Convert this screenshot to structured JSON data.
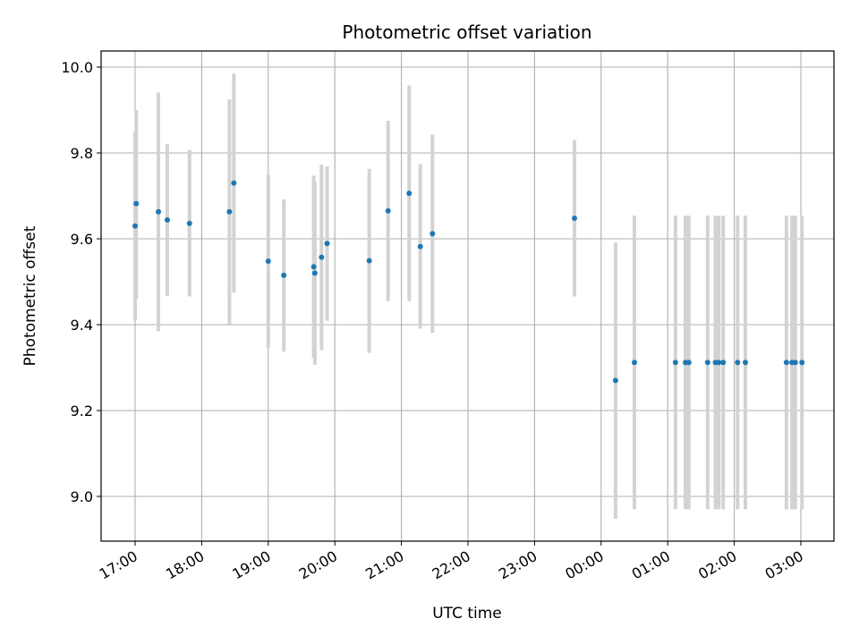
{
  "chart_data": {
    "type": "scatter",
    "title": "Photometric offset variation",
    "xlabel": "UTC time",
    "ylabel": "Photometric offset",
    "x_axis": {
      "type": "time",
      "lim": [
        "16:30",
        "03:30+1"
      ],
      "ticks": [
        "17:00",
        "18:00",
        "19:00",
        "20:00",
        "21:00",
        "22:00",
        "23:00",
        "00:00",
        "01:00",
        "02:00",
        "03:00"
      ]
    },
    "y_axis": {
      "lim": [
        8.9,
        10.04
      ],
      "ticks": [
        "9.0",
        "9.2",
        "9.4",
        "9.6",
        "9.8",
        "10.0"
      ]
    },
    "grid": true,
    "colors": {
      "point": "#1f77b4",
      "errorbar": "#d3d3d3",
      "grid": "#b0b0b0"
    },
    "points": [
      {
        "t": "17:00",
        "y": 9.63,
        "lo": 9.41,
        "hi": 9.85
      },
      {
        "t": "17:01",
        "y": 9.682,
        "lo": 9.46,
        "hi": 9.9
      },
      {
        "t": "17:21",
        "y": 9.663,
        "lo": 9.385,
        "hi": 9.941
      },
      {
        "t": "17:29",
        "y": 9.644,
        "lo": 9.467,
        "hi": 9.821
      },
      {
        "t": "17:49",
        "y": 9.636,
        "lo": 9.466,
        "hi": 9.807
      },
      {
        "t": "18:25",
        "y": 9.663,
        "lo": 9.401,
        "hi": 9.925
      },
      {
        "t": "18:29",
        "y": 9.73,
        "lo": 9.475,
        "hi": 9.985
      },
      {
        "t": "19:00",
        "y": 9.548,
        "lo": 9.347,
        "hi": 9.749
      },
      {
        "t": "19:14",
        "y": 9.515,
        "lo": 9.337,
        "hi": 9.692
      },
      {
        "t": "19:41",
        "y": 9.535,
        "lo": 9.323,
        "hi": 9.747
      },
      {
        "t": "19:42",
        "y": 9.52,
        "lo": 9.307,
        "hi": 9.732
      },
      {
        "t": "19:48",
        "y": 9.557,
        "lo": 9.341,
        "hi": 9.773
      },
      {
        "t": "19:53",
        "y": 9.589,
        "lo": 9.409,
        "hi": 9.769
      },
      {
        "t": "20:31",
        "y": 9.549,
        "lo": 9.334,
        "hi": 9.763
      },
      {
        "t": "20:48",
        "y": 9.665,
        "lo": 9.455,
        "hi": 9.875
      },
      {
        "t": "21:07",
        "y": 9.706,
        "lo": 9.455,
        "hi": 9.957
      },
      {
        "t": "21:17",
        "y": 9.582,
        "lo": 9.391,
        "hi": 9.774
      },
      {
        "t": "21:28",
        "y": 9.612,
        "lo": 9.381,
        "hi": 9.843
      },
      {
        "t": "23:36",
        "y": 9.648,
        "lo": 9.466,
        "hi": 9.83
      },
      {
        "t": "00:13",
        "y": 9.27,
        "lo": 8.948,
        "hi": 9.592
      },
      {
        "t": "00:30",
        "y": 9.312,
        "lo": 8.97,
        "hi": 9.654
      },
      {
        "t": "01:07",
        "y": 9.312,
        "lo": 8.97,
        "hi": 9.654
      },
      {
        "t": "01:16",
        "y": 9.312,
        "lo": 8.97,
        "hi": 9.654
      },
      {
        "t": "01:19",
        "y": 9.312,
        "lo": 8.97,
        "hi": 9.654
      },
      {
        "t": "01:36",
        "y": 9.312,
        "lo": 8.97,
        "hi": 9.654
      },
      {
        "t": "01:43",
        "y": 9.312,
        "lo": 8.97,
        "hi": 9.654
      },
      {
        "t": "01:46",
        "y": 9.312,
        "lo": 8.97,
        "hi": 9.654
      },
      {
        "t": "01:50",
        "y": 9.312,
        "lo": 8.97,
        "hi": 9.654
      },
      {
        "t": "02:03",
        "y": 9.312,
        "lo": 8.97,
        "hi": 9.654
      },
      {
        "t": "02:10",
        "y": 9.312,
        "lo": 8.97,
        "hi": 9.654
      },
      {
        "t": "02:47",
        "y": 9.312,
        "lo": 8.97,
        "hi": 9.654
      },
      {
        "t": "02:52",
        "y": 9.312,
        "lo": 8.97,
        "hi": 9.654
      },
      {
        "t": "02:55",
        "y": 9.312,
        "lo": 8.97,
        "hi": 9.654
      },
      {
        "t": "03:01",
        "y": 9.312,
        "lo": 8.97,
        "hi": 9.654
      }
    ]
  }
}
